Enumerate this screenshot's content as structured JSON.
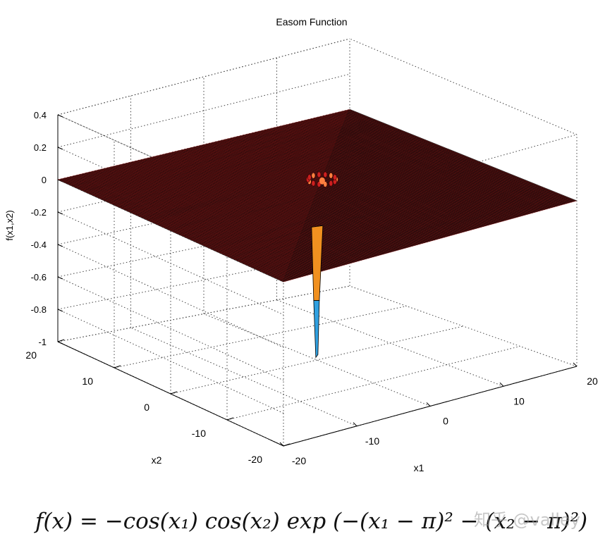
{
  "chart_data": {
    "type": "surface3d",
    "title": "Easom Function",
    "xlabel": "x1",
    "ylabel": "x2",
    "zlabel": "f(x1,x2)",
    "xlim": [
      -20,
      20
    ],
    "ylim": [
      -20,
      20
    ],
    "zlim": [
      -1,
      0.4
    ],
    "xticks": [
      -20,
      -10,
      0,
      10,
      20
    ],
    "yticks": [
      -20,
      -10,
      0,
      10,
      20
    ],
    "zticks": [
      -1,
      -0.8,
      -0.6,
      -0.4,
      -0.2,
      0,
      0.2,
      0.4
    ],
    "x_tick_labels": [
      "-20",
      "-10",
      "0",
      "10",
      "20"
    ],
    "y_tick_labels": [
      "-20",
      "-10",
      "0",
      "10",
      "20"
    ],
    "z_tick_labels": [
      "-1",
      "-0.8",
      "-0.6",
      "-0.4",
      "-0.2",
      "0",
      "0.2",
      "0.4"
    ],
    "grid": true,
    "minimum": {
      "x1": 3.1416,
      "x2": 3.1416,
      "f": -1
    },
    "colors": {
      "surface": "#3a1414",
      "surface_lines": "#b01010",
      "ring": "#cc2020",
      "ring_highlight": "#ff8040",
      "spike_upper": "#f09020",
      "spike_lower": "#30a0e0"
    }
  },
  "formula": "f(x) = −cos(x₁) cos(x₂) exp (−(x₁ − π)² − (x₂ − π)²)",
  "watermark": "知乎 @valley"
}
